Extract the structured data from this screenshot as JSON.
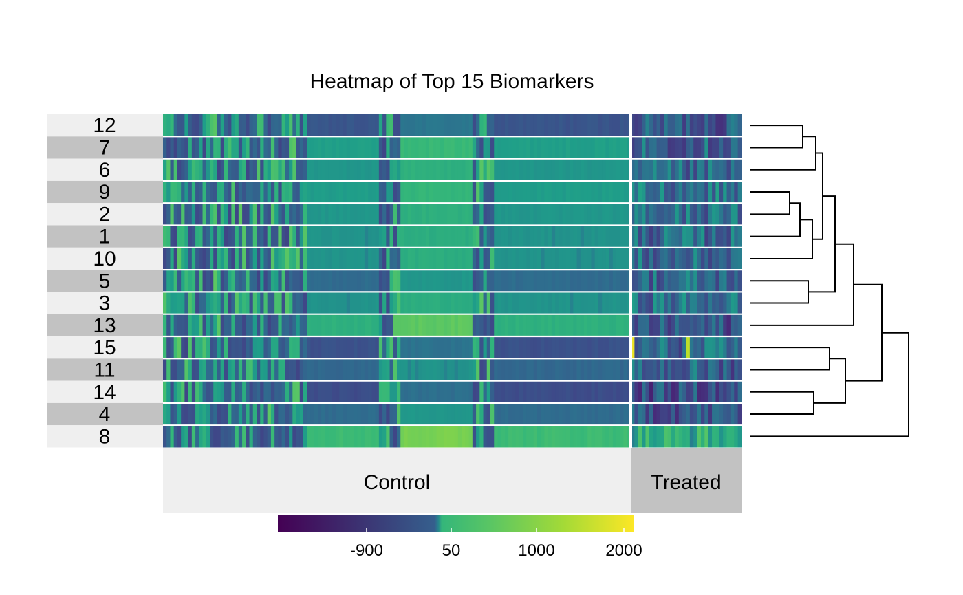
{
  "chart_data": {
    "type": "heatmap",
    "title": "Heatmap of Top 15 Biomarkers",
    "rows": [
      "12",
      "7",
      "6",
      "9",
      "2",
      "1",
      "10",
      "5",
      "3",
      "13",
      "15",
      "11",
      "14",
      "4",
      "8"
    ],
    "groups": [
      {
        "name": "Control",
        "n_columns": 130
      },
      {
        "name": "Treated",
        "n_columns": 30
      }
    ],
    "colorbar": {
      "ticks": [
        "-900",
        "50",
        "1000",
        "2000"
      ],
      "colors": [
        "#440154",
        "#3b528b",
        "#21918c",
        "#5ec962",
        "#fde725"
      ]
    },
    "row_profiles": {
      "12": {
        "control_block": -600,
        "treated_mean": -500
      },
      "7": {
        "control_block": 300,
        "treated_mean": -400
      },
      "6": {
        "control_block": 150,
        "treated_mean": -450
      },
      "9": {
        "control_block": 250,
        "treated_mean": -200
      },
      "2": {
        "control_block": 150,
        "treated_mean": -300
      },
      "1": {
        "control_block": 100,
        "treated_mean": -350
      },
      "10": {
        "control_block": 100,
        "treated_mean": -400
      },
      "5": {
        "control_block": -300,
        "treated_mean": -350
      },
      "3": {
        "control_block": 100,
        "treated_mean": -250
      },
      "13": {
        "control_block": 600,
        "treated_mean": -600
      },
      "15": {
        "control_block": -650,
        "treated_mean": -400
      },
      "11": {
        "control_block": -350,
        "treated_mean": -450
      },
      "14": {
        "control_block": -700,
        "treated_mean": -650
      },
      "4": {
        "control_block": -300,
        "treated_mean": -550
      },
      "8": {
        "control_block": 800,
        "treated_mean": 500
      }
    }
  }
}
